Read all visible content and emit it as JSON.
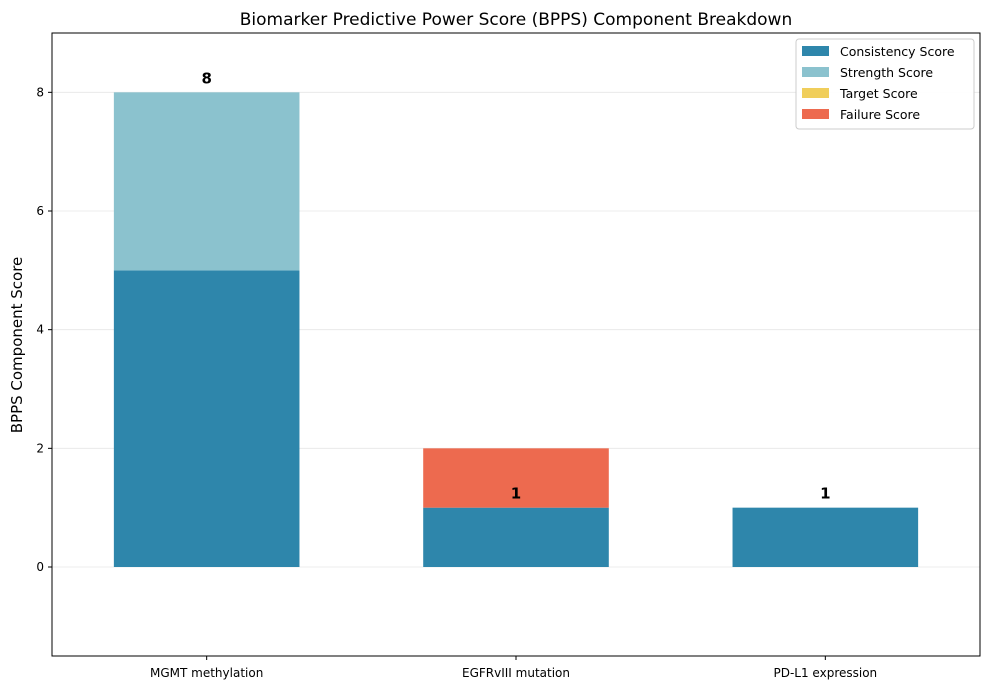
{
  "chart_data": {
    "type": "bar",
    "stacked": true,
    "title": "Biomarker Predictive Power Score (BPPS) Component Breakdown",
    "xlabel": "",
    "ylabel": "BPPS Component Score",
    "categories": [
      "MGMT methylation",
      "EGFRvIII mutation",
      "PD-L1 expression"
    ],
    "ylim": [
      -1.5,
      9.0
    ],
    "yticks": [
      0,
      2,
      4,
      6,
      8
    ],
    "grid": "horizontal",
    "legend_position": "top-right",
    "series": [
      {
        "name": "Consistency Score",
        "color": "#2E86AB",
        "values": [
          5,
          1,
          1
        ]
      },
      {
        "name": "Strength Score",
        "color": "#8BC2CE",
        "values": [
          3,
          0,
          0
        ]
      },
      {
        "name": "Target Score",
        "color": "#F0CE5B",
        "values": [
          0,
          0,
          0
        ]
      },
      {
        "name": "Failure Score",
        "color": "#ED6A4F",
        "values": [
          0,
          1,
          0
        ]
      }
    ],
    "total_labels": [
      "8",
      "1",
      "1"
    ]
  }
}
